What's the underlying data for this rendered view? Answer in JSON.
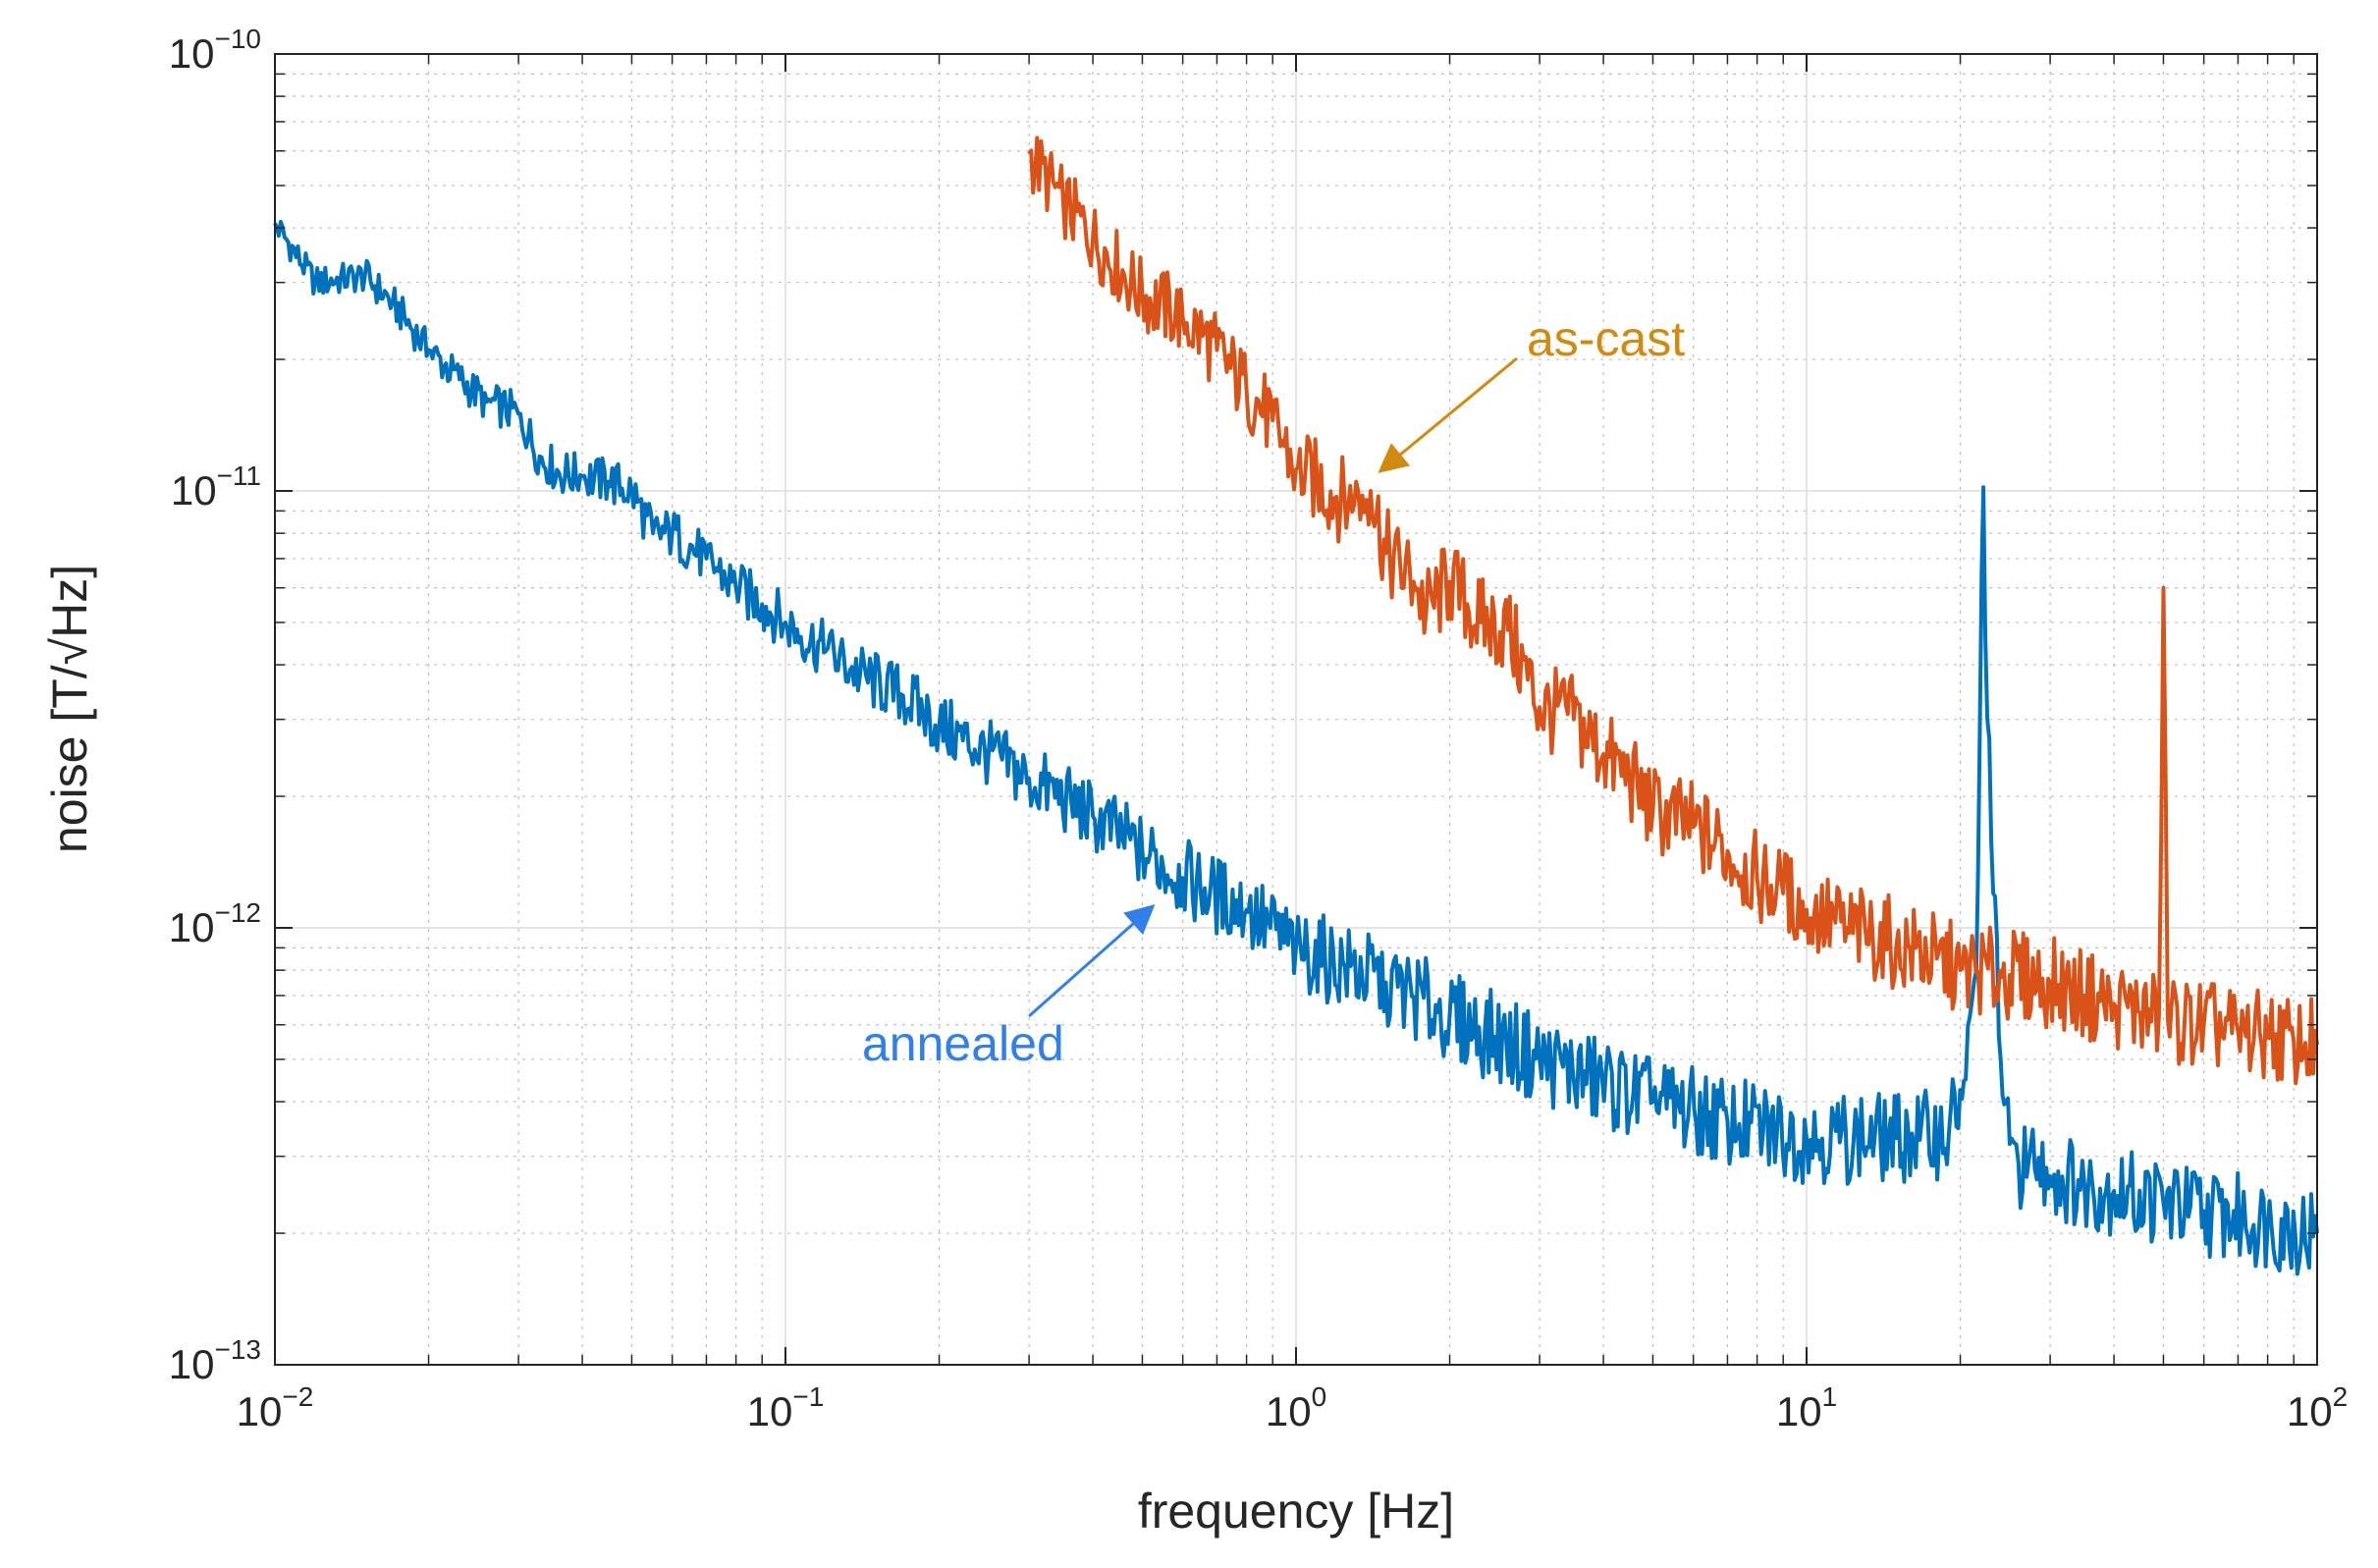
{
  "chart_data": {
    "type": "line",
    "title": "",
    "xlabel": "frequency [Hz]",
    "ylabel": "noise [T/√Hz]",
    "xscale": "log",
    "yscale": "log",
    "xlim": [
      0.01,
      100
    ],
    "ylim": [
      1e-13,
      1e-10
    ],
    "grid": true,
    "x_ticks": [
      {
        "base": "10",
        "exp": "−2",
        "value": 0.01
      },
      {
        "base": "10",
        "exp": "−1",
        "value": 0.1
      },
      {
        "base": "10",
        "exp": "0",
        "value": 1
      },
      {
        "base": "10",
        "exp": "1",
        "value": 10
      },
      {
        "base": "10",
        "exp": "2",
        "value": 100
      }
    ],
    "y_ticks": [
      {
        "base": "10",
        "exp": "−10",
        "value": 1e-10
      },
      {
        "base": "10",
        "exp": "−11",
        "value": 1e-11
      },
      {
        "base": "10",
        "exp": "−12",
        "value": 1e-12
      },
      {
        "base": "10",
        "exp": "−13",
        "value": 1e-13
      }
    ],
    "series": [
      {
        "name": "annealed",
        "color": "#0072BD",
        "x": [
          0.01,
          0.012,
          0.015,
          0.017,
          0.02,
          0.023,
          0.026,
          0.03,
          0.033,
          0.036,
          0.04,
          0.045,
          0.05,
          0.055,
          0.06,
          0.07,
          0.08,
          0.09,
          0.1,
          0.12,
          0.14,
          0.17,
          0.2,
          0.25,
          0.3,
          0.4,
          0.5,
          0.6,
          0.8,
          1.0,
          1.5,
          2.0,
          3.0,
          5.0,
          7.0,
          10.0,
          15.0,
          19.0,
          20.5,
          21.5,
          22.2,
          22.6,
          23.2,
          24.0,
          25.0,
          26.0,
          28.0,
          30.0,
          35.0,
          40.0,
          50.0,
          60.0,
          80.0,
          100.0
        ],
        "y": [
          4.1e-11,
          3e-11,
          3.1e-11,
          2.7e-11,
          2.1e-11,
          1.8e-11,
          1.6e-11,
          1.5e-11,
          1.2e-11,
          1.1e-11,
          1.08e-11,
          1.05e-11,
          1e-11,
          8e-12,
          8e-12,
          7e-12,
          6e-12,
          5.5e-12,
          5e-12,
          4.3e-12,
          3.8e-12,
          3.4e-12,
          2.9e-12,
          2.5e-12,
          2.2e-12,
          1.8e-12,
          1.5e-12,
          1.3e-12,
          1.1e-12,
          9e-13,
          7.5e-13,
          6.3e-13,
          5e-13,
          4e-13,
          3.6e-13,
          3.3e-13,
          3.3e-13,
          3.4e-13,
          4.5e-13,
          8e-13,
          1.02e-11,
          3e-12,
          1.2e-12,
          5e-13,
          3.2e-13,
          2.9e-13,
          2.8e-13,
          2.7e-13,
          2.6e-13,
          2.5e-13,
          2.35e-13,
          2.25e-13,
          2.1e-13,
          2e-13
        ]
      },
      {
        "name": "as-cast",
        "color": "#D95319",
        "x": [
          0.3,
          0.35,
          0.4,
          0.5,
          0.6,
          0.7,
          0.8,
          0.9,
          1.0,
          1.1,
          1.2,
          1.3,
          1.4,
          1.5,
          1.7,
          1.8,
          2.0,
          2.3,
          2.6,
          3.0,
          3.5,
          4.0,
          4.5,
          5.0,
          6.0,
          7.0,
          8.0,
          9.0,
          10.0,
          12.0,
          15.0,
          18.0,
          20.0,
          25.0,
          30.0,
          35.0,
          40.0,
          45.0,
          49.0,
          50.0,
          51.0,
          55.0,
          60.0,
          70.0,
          80.0,
          90.0,
          100.0
        ],
        "y": [
          5.9e-11,
          4.6e-11,
          3.8e-11,
          2.8e-11,
          2.5e-11,
          2.1e-11,
          1.7e-11,
          1.45e-11,
          1.12e-11,
          1.05e-11,
          9.7e-12,
          9.3e-12,
          1e-11,
          7.2e-12,
          6.2e-12,
          5.3e-12,
          6.2e-12,
          5e-12,
          4.8e-12,
          3.2e-12,
          3e-12,
          2.5e-12,
          2.2e-12,
          1.85e-12,
          1.7e-12,
          1.5e-12,
          1.3e-12,
          1.2e-12,
          1.1e-12,
          1e-12,
          9.2e-13,
          8.5e-13,
          8e-13,
          7.8e-13,
          7.5e-13,
          7e-13,
          6.7e-13,
          6.4e-13,
          6.3e-13,
          6e-12,
          6.2e-13,
          6.1e-13,
          6e-13,
          5.8e-13,
          5.6e-13,
          5.5e-13,
          5.4e-13
        ]
      }
    ],
    "annotations": [
      {
        "text": "as-cast",
        "color": "#D28A0E",
        "points_to": [
          1.4,
          1e-11
        ]
      },
      {
        "text": "annealed",
        "color": "#2F80ED",
        "points_to": [
          0.6,
          1.45e-12
        ]
      }
    ]
  }
}
